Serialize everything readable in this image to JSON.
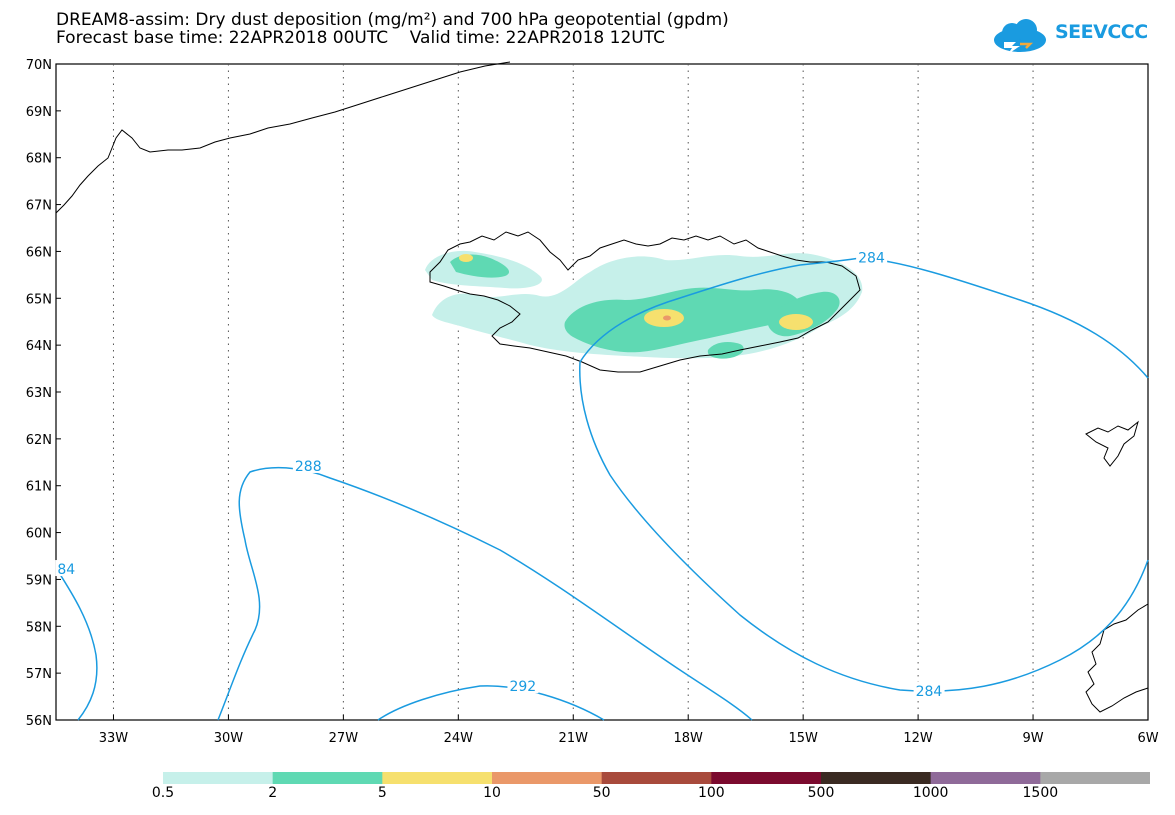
{
  "title_line1": "DREAM8-assim: Dry dust deposition (mg/m²) and 700 hPa geopotential (gpdm)",
  "title_line2": "Forecast base time: 22APR2018 00UTC    Valid time: 22APR2018 12UTC",
  "logo_text": "SEEVCCC",
  "lat_labels": [
    "70N",
    "69N",
    "68N",
    "67N",
    "66N",
    "65N",
    "64N",
    "63N",
    "62N",
    "61N",
    "60N",
    "59N",
    "58N",
    "57N",
    "56N"
  ],
  "lon_labels": [
    "33W",
    "30W",
    "27W",
    "24W",
    "21W",
    "18W",
    "15W",
    "12W",
    "9W",
    "6W"
  ],
  "contour_labels": [
    {
      "text": "284",
      "lon": -13.2,
      "lat": 65.85
    },
    {
      "text": "288",
      "lon": -27.9,
      "lat": 61.4
    },
    {
      "text": "292",
      "lon": -22.3,
      "lat": 56.7
    },
    {
      "text": "284",
      "lon": -11.7,
      "lat": 56.6
    },
    {
      "text": "84",
      "lon": -34.1,
      "lat": 59.2
    }
  ],
  "legend": {
    "colors": [
      "#c6f0ea",
      "#5fd9b3",
      "#f6e06e",
      "#ea9869",
      "#a84a3c",
      "#7b0a2e",
      "#3a2a22",
      "#8f6a99",
      "#a8a8a8"
    ],
    "labels": [
      "0.5",
      "2",
      "5",
      "10",
      "50",
      "100",
      "500",
      "1000",
      "1500"
    ]
  },
  "colors": {
    "contour": "#1a9be0",
    "coast": "#000000"
  }
}
